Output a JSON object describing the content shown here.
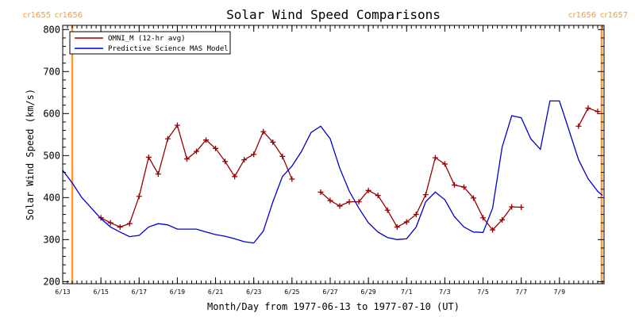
{
  "chart_data": {
    "type": "line",
    "title": "Solar Wind Speed Comparisons",
    "xlabel": "Month/Day from 1977-06-13 to 1977-07-10 (UT)",
    "ylabel": "Solar Wind Speed (km/s)",
    "x_start_date": "1977-06-13",
    "xlim": [
      "1977-06-13",
      "1977-07-11 08:00"
    ],
    "ylim": [
      195,
      810
    ],
    "yticks": [
      200,
      300,
      400,
      500,
      600,
      700,
      800
    ],
    "xticks": [
      {
        "label": "6/13",
        "date": "1977-06-13"
      },
      {
        "label": "6/15",
        "date": "1977-06-15"
      },
      {
        "label": "6/17",
        "date": "1977-06-17"
      },
      {
        "label": "6/19",
        "date": "1977-06-19"
      },
      {
        "label": "6/21",
        "date": "1977-06-21"
      },
      {
        "label": "6/23",
        "date": "1977-06-23"
      },
      {
        "label": "6/25",
        "date": "1977-06-25"
      },
      {
        "label": "6/27",
        "date": "1977-06-27"
      },
      {
        "label": "6/29",
        "date": "1977-06-29"
      },
      {
        "label": "7/1",
        "date": "1977-07-01"
      },
      {
        "label": "7/3",
        "date": "1977-07-03"
      },
      {
        "label": "7/5",
        "date": "1977-07-05"
      },
      {
        "label": "7/7",
        "date": "1977-07-07"
      },
      {
        "label": "7/9",
        "date": "1977-07-09"
      }
    ],
    "legend_position": "top-left",
    "carrington_boundaries": [
      {
        "date": "1977-06-13 12:00",
        "label_left": "cr1655",
        "label_right": "cr1656"
      },
      {
        "date": "1977-07-11 05:00",
        "label_left": "cr1656",
        "label_right": "cr1657"
      }
    ],
    "series": [
      {
        "name": "OMNI_M (12-hr avg)",
        "color": "#990000",
        "marker": "plus",
        "x": [
          "1977-06-15 00:00",
          "1977-06-15 12:00",
          "1977-06-16 00:00",
          "1977-06-16 12:00",
          "1977-06-17 00:00",
          "1977-06-17 12:00",
          "1977-06-18 00:00",
          "1977-06-18 12:00",
          "1977-06-19 00:00",
          "1977-06-19 12:00",
          "1977-06-20 00:00",
          "1977-06-20 12:00",
          "1977-06-21 00:00",
          "1977-06-21 12:00",
          "1977-06-22 00:00",
          "1977-06-22 12:00",
          "1977-06-23 00:00",
          "1977-06-23 12:00",
          "1977-06-24 00:00",
          "1977-06-24 12:00",
          "1977-06-25 00:00",
          null,
          "1977-06-26 12:00",
          "1977-06-27 00:00",
          "1977-06-27 12:00",
          "1977-06-28 00:00",
          "1977-06-28 12:00",
          "1977-06-29 00:00",
          "1977-06-29 12:00",
          "1977-06-30 00:00",
          "1977-06-30 12:00",
          "1977-07-01 00:00",
          "1977-07-01 12:00",
          "1977-07-02 00:00",
          "1977-07-02 12:00",
          "1977-07-03 00:00",
          "1977-07-03 12:00",
          "1977-07-04 00:00",
          "1977-07-04 12:00",
          "1977-07-05 00:00",
          "1977-07-05 12:00",
          "1977-07-06 00:00",
          "1977-07-06 12:00",
          "1977-07-07 00:00",
          null,
          "1977-07-10 00:00",
          "1977-07-10 12:00",
          "1977-07-11 00:00"
        ],
        "values": [
          352,
          340,
          330,
          338,
          403,
          496,
          456,
          540,
          572,
          492,
          510,
          537,
          517,
          486,
          450,
          490,
          503,
          557,
          532,
          498,
          444,
          null,
          413,
          393,
          380,
          390,
          390,
          417,
          405,
          370,
          330,
          342,
          360,
          407,
          495,
          480,
          430,
          425,
          399,
          352,
          323,
          347,
          378,
          377,
          null,
          570,
          613,
          605
        ]
      },
      {
        "name": "Predictive Science MAS Model",
        "color": "#0000cc",
        "x": [
          "1977-06-13 00:00",
          "1977-06-13 12:00",
          "1977-06-14 00:00",
          "1977-06-14 12:00",
          "1977-06-15 00:00",
          "1977-06-15 12:00",
          "1977-06-16 00:00",
          "1977-06-16 12:00",
          "1977-06-17 00:00",
          "1977-06-17 12:00",
          "1977-06-18 00:00",
          "1977-06-18 12:00",
          "1977-06-19 00:00",
          "1977-06-19 12:00",
          "1977-06-20 00:00",
          "1977-06-20 12:00",
          "1977-06-21 00:00",
          "1977-06-21 12:00",
          "1977-06-22 00:00",
          "1977-06-22 12:00",
          "1977-06-23 00:00",
          "1977-06-23 12:00",
          "1977-06-24 00:00",
          "1977-06-24 12:00",
          "1977-06-25 00:00",
          "1977-06-25 12:00",
          "1977-06-26 00:00",
          "1977-06-26 12:00",
          "1977-06-27 00:00",
          "1977-06-27 12:00",
          "1977-06-28 00:00",
          "1977-06-28 12:00",
          "1977-06-29 00:00",
          "1977-06-29 12:00",
          "1977-06-30 00:00",
          "1977-06-30 12:00",
          "1977-07-01 00:00",
          "1977-07-01 12:00",
          "1977-07-02 00:00",
          "1977-07-02 12:00",
          "1977-07-03 00:00",
          "1977-07-03 12:00",
          "1977-07-04 00:00",
          "1977-07-04 12:00",
          "1977-07-05 00:00",
          "1977-07-05 12:00",
          "1977-07-06 00:00",
          "1977-07-06 12:00",
          "1977-07-07 00:00",
          "1977-07-07 12:00",
          "1977-07-08 00:00",
          "1977-07-08 12:00",
          "1977-07-09 00:00",
          "1977-07-09 12:00",
          "1977-07-10 00:00",
          "1977-07-10 12:00",
          "1977-07-11 00:00",
          "1977-07-11 06:00"
        ],
        "values": [
          465,
          435,
          400,
          375,
          350,
          330,
          318,
          307,
          310,
          330,
          338,
          335,
          325,
          325,
          325,
          318,
          312,
          308,
          302,
          295,
          292,
          320,
          390,
          450,
          475,
          510,
          555,
          570,
          540,
          470,
          415,
          375,
          340,
          318,
          305,
          300,
          302,
          330,
          390,
          413,
          395,
          355,
          330,
          318,
          317,
          375,
          520,
          595,
          590,
          540,
          515,
          630,
          630,
          560,
          490,
          445,
          415,
          405
        ]
      }
    ]
  }
}
